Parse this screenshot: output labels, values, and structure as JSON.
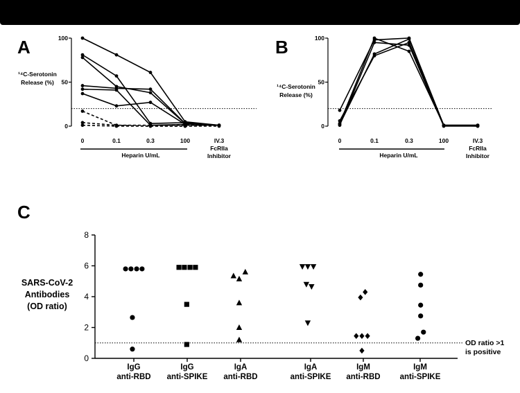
{
  "chart_data": [
    {
      "panel": "A",
      "type": "line",
      "ylabel": "14C-Serotonin Release (%)",
      "ylabel_lines": [
        "¹⁴C-Serotonin",
        "Release (%)"
      ],
      "ylim": [
        0,
        100
      ],
      "yticks": [
        "0",
        "50",
        "100"
      ],
      "categories": [
        "0",
        "0.1",
        "0.3",
        "100",
        "IV.3 FcRIIa Inhibitor"
      ],
      "category_label_lines": [
        [
          "0"
        ],
        [
          "0.1"
        ],
        [
          "0.3"
        ],
        [
          "100"
        ],
        [
          "IV.3",
          "FcRIIa",
          "Inhibitor"
        ]
      ],
      "xlabel": "Heparin U/mL",
      "threshold": 20,
      "series": [
        {
          "style": "solid",
          "values": [
            100,
            81,
            61,
            5,
            1
          ]
        },
        {
          "style": "solid",
          "values": [
            81,
            57,
            3,
            4,
            1
          ]
        },
        {
          "style": "solid",
          "values": [
            78,
            45,
            38,
            3,
            1
          ]
        },
        {
          "style": "solid",
          "values": [
            46,
            43,
            42,
            3,
            1
          ]
        },
        {
          "style": "solid",
          "values": [
            42,
            41,
            1,
            2,
            1
          ]
        },
        {
          "style": "solid",
          "values": [
            37,
            23,
            27,
            2,
            1
          ]
        },
        {
          "style": "dashed",
          "values": [
            17,
            1,
            1,
            1,
            1
          ]
        },
        {
          "style": "dashed",
          "values": [
            4,
            1,
            0,
            0,
            1
          ]
        },
        {
          "style": "dashed",
          "values": [
            1,
            0,
            0,
            0,
            0
          ]
        }
      ]
    },
    {
      "panel": "B",
      "type": "line",
      "ylabel": "14C-Serotonin Release (%)",
      "ylabel_lines": [
        "¹⁴C-Serotonin",
        "Release (%)"
      ],
      "ylim": [
        0,
        100
      ],
      "yticks": [
        "0",
        "50",
        "100"
      ],
      "categories": [
        "0",
        "0.1",
        "0.3",
        "100",
        "IV.3 FcRIIa Inhibitor"
      ],
      "category_label_lines": [
        [
          "0"
        ],
        [
          "0.1"
        ],
        [
          "0.3"
        ],
        [
          "100"
        ],
        [
          "IV.3",
          "FcRIIa",
          "Inhibitor"
        ]
      ],
      "xlabel": "Heparin U/mL",
      "threshold": 20,
      "series": [
        {
          "style": "solid",
          "values": [
            18,
            98,
            100,
            1,
            1
          ]
        },
        {
          "style": "solid",
          "values": [
            6,
            80,
            95,
            1,
            0
          ]
        },
        {
          "style": "solid",
          "values": [
            3,
            100,
            85,
            1,
            1
          ]
        },
        {
          "style": "solid",
          "values": [
            1,
            95,
            92,
            0,
            0
          ]
        },
        {
          "style": "solid",
          "values": [
            2,
            82,
            99,
            1,
            1
          ]
        }
      ]
    },
    {
      "panel": "C",
      "type": "scatter",
      "ylabel": "SARS-CoV-2 Antibodies (OD ratio)",
      "ylabel_lines": [
        "SARS-CoV-2",
        "Antibodies",
        "(OD ratio)"
      ],
      "ylim": [
        0,
        8
      ],
      "yticks": [
        "0",
        "2",
        "4",
        "6",
        "8"
      ],
      "threshold": 1,
      "threshold_label_lines": [
        "OD ratio >1",
        "is positive"
      ],
      "groups": [
        {
          "label_lines": [
            "IgG",
            "anti-RBD"
          ],
          "marker": "circle",
          "points": [
            [
              -0.35,
              5.8
            ],
            [
              -0.12,
              5.8
            ],
            [
              0.12,
              5.8
            ],
            [
              0.35,
              5.8
            ],
            [
              -0.06,
              2.65
            ],
            [
              -0.06,
              0.6
            ]
          ]
        },
        {
          "label_lines": [
            "IgG",
            "anti-SPIKE"
          ],
          "marker": "square",
          "points": [
            [
              -0.35,
              5.9
            ],
            [
              -0.12,
              5.9
            ],
            [
              0.12,
              5.9
            ],
            [
              0.35,
              5.9
            ],
            [
              -0.02,
              3.5
            ],
            [
              -0.02,
              0.9
            ]
          ]
        },
        {
          "label_lines": [
            "IgA",
            "anti-RBD"
          ],
          "marker": "triangle-up",
          "points": [
            [
              -0.3,
              5.35
            ],
            [
              -0.06,
              5.15
            ],
            [
              0.2,
              5.6
            ],
            [
              -0.06,
              3.6
            ],
            [
              -0.06,
              2.0
            ],
            [
              -0.06,
              1.2
            ]
          ]
        },
        {
          "label_lines": [
            "IgA",
            "anti-SPIKE"
          ],
          "marker": "triangle-down",
          "points": [
            [
              -0.35,
              5.95
            ],
            [
              -0.12,
              5.95
            ],
            [
              0.12,
              5.95
            ],
            [
              -0.18,
              4.8
            ],
            [
              0.04,
              4.65
            ],
            [
              -0.12,
              2.3
            ]
          ]
        },
        {
          "label_lines": [
            "IgM",
            "anti-RBD"
          ],
          "marker": "diamond",
          "points": [
            [
              -0.12,
              3.95
            ],
            [
              0.08,
              4.3
            ],
            [
              -0.3,
              1.45
            ],
            [
              -0.06,
              1.45
            ],
            [
              0.18,
              1.45
            ],
            [
              -0.06,
              0.5
            ]
          ]
        },
        {
          "label_lines": [
            "IgM",
            "anti-SPIKE"
          ],
          "marker": "circle",
          "points": [
            [
              0.02,
              5.45
            ],
            [
              0.02,
              4.75
            ],
            [
              0.02,
              3.45
            ],
            [
              0.02,
              2.75
            ],
            [
              0.14,
              1.7
            ],
            [
              -0.1,
              1.3
            ]
          ]
        }
      ]
    }
  ],
  "panel_letters": [
    "A",
    "B",
    "C"
  ]
}
